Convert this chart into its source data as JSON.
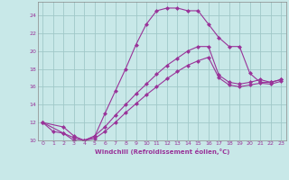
{
  "xlabel": "Windchill (Refroidissement éolien,°C)",
  "bg_color": "#c8e8e8",
  "grid_color": "#a0c8c8",
  "line_color": "#993399",
  "xlim": [
    -0.5,
    23.5
  ],
  "ylim": [
    10,
    25.5
  ],
  "yticks": [
    10,
    12,
    14,
    16,
    18,
    20,
    22,
    24
  ],
  "xticks": [
    0,
    1,
    2,
    3,
    4,
    5,
    6,
    7,
    8,
    9,
    10,
    11,
    12,
    13,
    14,
    15,
    16,
    17,
    18,
    19,
    20,
    21,
    22,
    23
  ],
  "line1_x": [
    0,
    1,
    2,
    3,
    4,
    5,
    6,
    7,
    8,
    9,
    10,
    11,
    12,
    13,
    14,
    15,
    16,
    17,
    18,
    19,
    20,
    21,
    22,
    23
  ],
  "line1_y": [
    12,
    11,
    10.8,
    10.0,
    10.0,
    10.4,
    13.0,
    15.5,
    18.0,
    20.7,
    23.0,
    24.5,
    24.8,
    24.8,
    24.5,
    24.5,
    23.0,
    21.5,
    20.5,
    20.5,
    17.5,
    16.5,
    16.5,
    16.8
  ],
  "line2_x": [
    0,
    2,
    3,
    4,
    5,
    6,
    7,
    8,
    9,
    10,
    11,
    12,
    13,
    14,
    15,
    16,
    17,
    18,
    19,
    20,
    21,
    22,
    23
  ],
  "line2_y": [
    12,
    11.5,
    10.5,
    10.0,
    10.5,
    11.5,
    12.8,
    14.0,
    15.2,
    16.3,
    17.4,
    18.4,
    19.2,
    20.0,
    20.5,
    20.5,
    17.3,
    16.5,
    16.3,
    16.5,
    16.8,
    16.5,
    16.8
  ],
  "line3_x": [
    0,
    2,
    3,
    4,
    5,
    6,
    7,
    8,
    9,
    10,
    11,
    12,
    13,
    14,
    15,
    16,
    17,
    18,
    19,
    20,
    21,
    22,
    23
  ],
  "line3_y": [
    12,
    10.8,
    10.3,
    10.0,
    10.2,
    11.0,
    12.0,
    13.1,
    14.1,
    15.1,
    16.0,
    16.9,
    17.7,
    18.4,
    18.9,
    19.3,
    17.0,
    16.2,
    16.0,
    16.2,
    16.4,
    16.3,
    16.6
  ]
}
